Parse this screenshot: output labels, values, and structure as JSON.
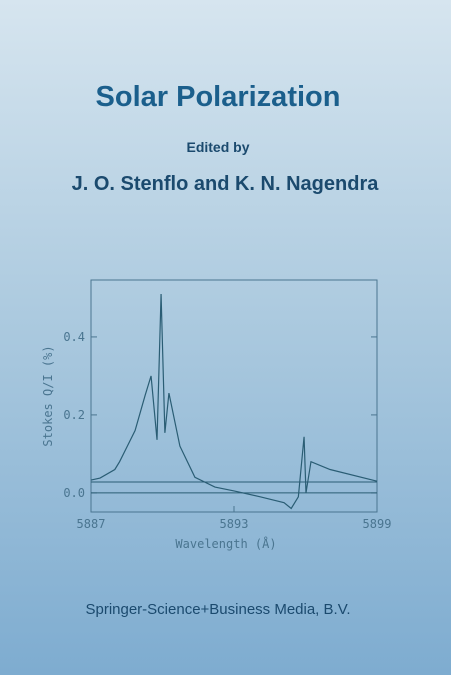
{
  "cover": {
    "title": "Solar Polarization",
    "edited_by": "Edited by",
    "editors": "J. O. Stenflo and K. N. Nagendra",
    "publisher": "Springer-Science+Business Media, B.V."
  },
  "chart_data": {
    "type": "line",
    "x_label": "Wavelength (Å)",
    "y_label": "Stokes Q/I (%)",
    "x": [
      5887,
      5887.38,
      5888,
      5888.2,
      5888.85,
      5889.27,
      5889.52,
      5889.77,
      5889.94,
      5890.1,
      5890.27,
      5890.73,
      5891.36,
      5892.2,
      5893,
      5894.1,
      5895.1,
      5895.4,
      5895.7,
      5895.94,
      5896.02,
      5896.23,
      5897.03,
      5899
    ],
    "series": [
      {
        "name": "Stokes Q/I",
        "color": "#2a5d74",
        "values": [
          0.033,
          0.038,
          0.06,
          0.08,
          0.16,
          0.25,
          0.3,
          0.136,
          0.51,
          0.154,
          0.256,
          0.12,
          0.04,
          0.015,
          0.005,
          -0.01,
          -0.025,
          -0.04,
          -0.01,
          0.144,
          0.0,
          0.08,
          0.06,
          0.03
        ]
      }
    ],
    "reference_lines": [
      0,
      0.028
    ],
    "xlim": [
      5887,
      5899
    ],
    "ylim": [
      -0.049,
      0.546
    ],
    "xticks": [
      5887,
      5893,
      5899
    ],
    "yticks": [
      {
        "value": 0,
        "label": "0.0"
      },
      0.2,
      0.4
    ]
  }
}
